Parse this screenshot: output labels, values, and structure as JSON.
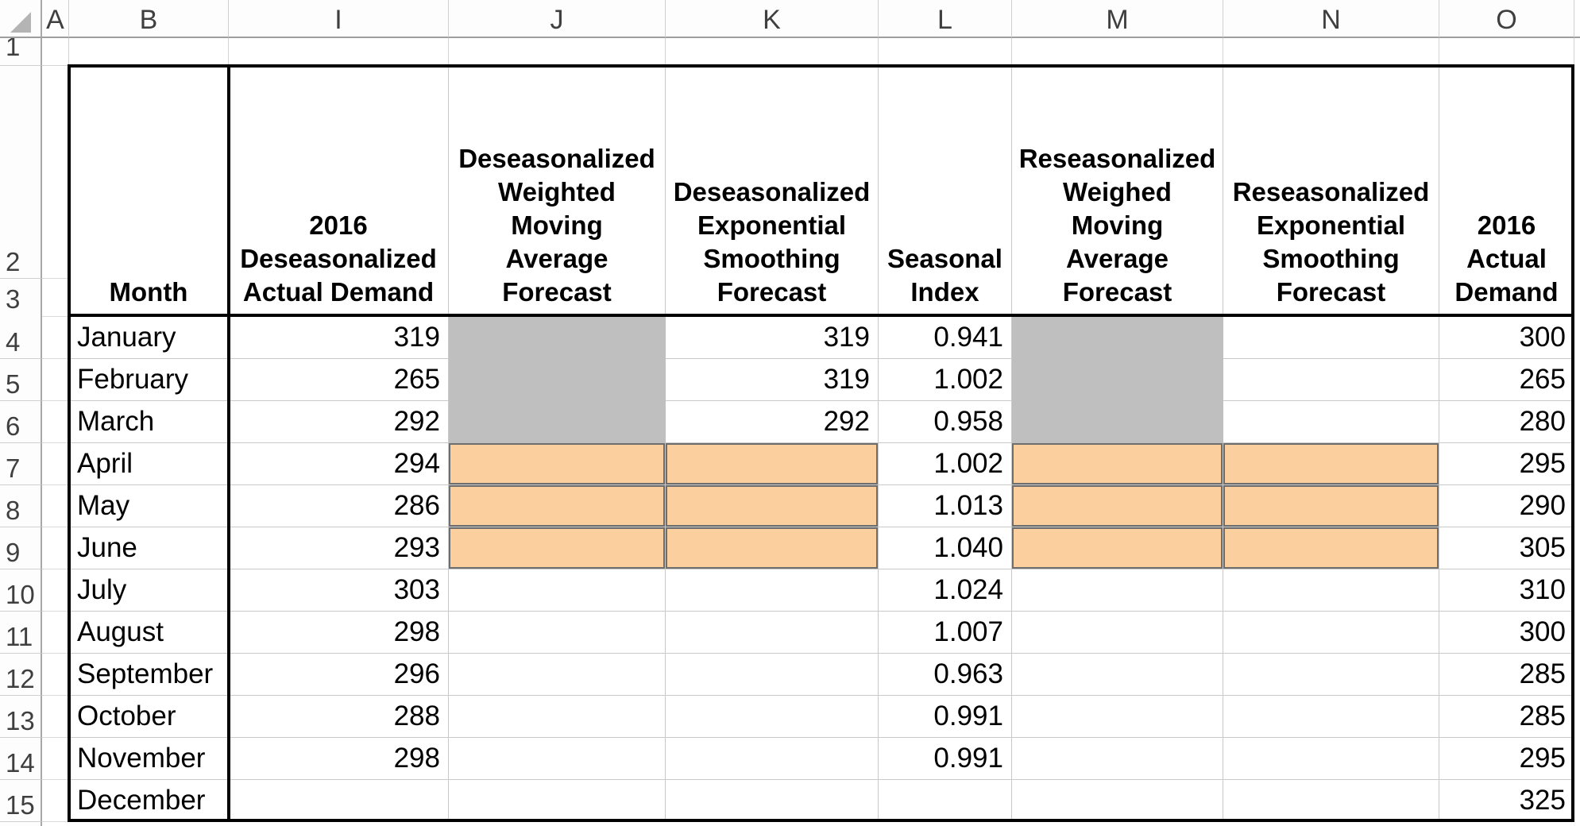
{
  "sheet": {
    "column_headers": [
      "A",
      "B",
      "I",
      "J",
      "K",
      "L",
      "M",
      "N",
      "O"
    ],
    "row_numbers": [
      "1",
      "2",
      "3",
      "4",
      "5",
      "6",
      "7",
      "8",
      "9",
      "10",
      "11",
      "12",
      "13",
      "14",
      "15"
    ]
  },
  "table": {
    "headers": {
      "month": "Month",
      "deseason_actual": "2016\nDeseasonalized\nActual Demand",
      "wma_forecast": "Deseasonalized\nWeighted\nMoving\nAverage\nForecast",
      "exp_forecast": "Deseasonalized\nExponential\nSmoothing\nForecast",
      "seasonal_index": "Seasonal\nIndex",
      "res_wma_forecast": "Reseasonalized\nWeighed\nMoving\nAverage\nForecast",
      "res_exp_forecast": "Reseasonalized\nExponential\nSmoothing\nForecast",
      "actual": "2016\nActual\nDemand"
    },
    "rows": [
      {
        "num": "4",
        "month": "January",
        "deseason_actual": "319",
        "wma": "",
        "exp": "319",
        "seasonal_index": "0.941",
        "res_wma": "",
        "res_exp": "",
        "actual": "300",
        "wma_fill": "gray",
        "exp_fill": "none",
        "res_wma_fill": "gray",
        "res_exp_fill": "none"
      },
      {
        "num": "5",
        "month": "February",
        "deseason_actual": "265",
        "wma": "",
        "exp": "319",
        "seasonal_index": "1.002",
        "res_wma": "",
        "res_exp": "",
        "actual": "265",
        "wma_fill": "gray",
        "exp_fill": "none",
        "res_wma_fill": "gray",
        "res_exp_fill": "none"
      },
      {
        "num": "6",
        "month": "March",
        "deseason_actual": "292",
        "wma": "",
        "exp": "292",
        "seasonal_index": "0.958",
        "res_wma": "",
        "res_exp": "",
        "actual": "280",
        "wma_fill": "gray",
        "exp_fill": "none",
        "res_wma_fill": "gray",
        "res_exp_fill": "none"
      },
      {
        "num": "7",
        "month": "April",
        "deseason_actual": "294",
        "wma": "",
        "exp": "",
        "seasonal_index": "1.002",
        "res_wma": "",
        "res_exp": "",
        "actual": "295",
        "wma_fill": "orange",
        "exp_fill": "orange",
        "res_wma_fill": "orange",
        "res_exp_fill": "orange"
      },
      {
        "num": "8",
        "month": "May",
        "deseason_actual": "286",
        "wma": "",
        "exp": "",
        "seasonal_index": "1.013",
        "res_wma": "",
        "res_exp": "",
        "actual": "290",
        "wma_fill": "orange",
        "exp_fill": "orange",
        "res_wma_fill": "orange",
        "res_exp_fill": "orange"
      },
      {
        "num": "9",
        "month": "June",
        "deseason_actual": "293",
        "wma": "",
        "exp": "",
        "seasonal_index": "1.040",
        "res_wma": "",
        "res_exp": "",
        "actual": "305",
        "wma_fill": "orange",
        "exp_fill": "orange",
        "res_wma_fill": "orange",
        "res_exp_fill": "orange"
      },
      {
        "num": "10",
        "month": "July",
        "deseason_actual": "303",
        "wma": "",
        "exp": "",
        "seasonal_index": "1.024",
        "res_wma": "",
        "res_exp": "",
        "actual": "310",
        "wma_fill": "none",
        "exp_fill": "none",
        "res_wma_fill": "none",
        "res_exp_fill": "none"
      },
      {
        "num": "11",
        "month": "August",
        "deseason_actual": "298",
        "wma": "",
        "exp": "",
        "seasonal_index": "1.007",
        "res_wma": "",
        "res_exp": "",
        "actual": "300",
        "wma_fill": "none",
        "exp_fill": "none",
        "res_wma_fill": "none",
        "res_exp_fill": "none"
      },
      {
        "num": "12",
        "month": "September",
        "deseason_actual": "296",
        "wma": "",
        "exp": "",
        "seasonal_index": "0.963",
        "res_wma": "",
        "res_exp": "",
        "actual": "285",
        "wma_fill": "none",
        "exp_fill": "none",
        "res_wma_fill": "none",
        "res_exp_fill": "none"
      },
      {
        "num": "13",
        "month": "October",
        "deseason_actual": "288",
        "wma": "",
        "exp": "",
        "seasonal_index": "0.991",
        "res_wma": "",
        "res_exp": "",
        "actual": "285",
        "wma_fill": "none",
        "exp_fill": "none",
        "res_wma_fill": "none",
        "res_exp_fill": "none"
      },
      {
        "num": "14",
        "month": "November",
        "deseason_actual": "298",
        "wma": "",
        "exp": "",
        "seasonal_index": "0.991",
        "res_wma": "",
        "res_exp": "",
        "actual": "295",
        "wma_fill": "none",
        "exp_fill": "none",
        "res_wma_fill": "none",
        "res_exp_fill": "none"
      },
      {
        "num": "15",
        "month": "December",
        "deseason_actual": "",
        "wma": "",
        "exp": "",
        "seasonal_index": "",
        "res_wma": "",
        "res_exp": "",
        "actual": "325",
        "wma_fill": "none",
        "exp_fill": "none",
        "res_wma_fill": "none",
        "res_exp_fill": "none"
      }
    ]
  },
  "colors": {
    "gray_fill": "#bfbfbf",
    "orange_fill": "#fccf9e",
    "orange_cell_border": "#6e6e6e",
    "thick_table_border": "#000000",
    "gridline": "#c9c9c9",
    "header_text": "#3f3f3f"
  }
}
